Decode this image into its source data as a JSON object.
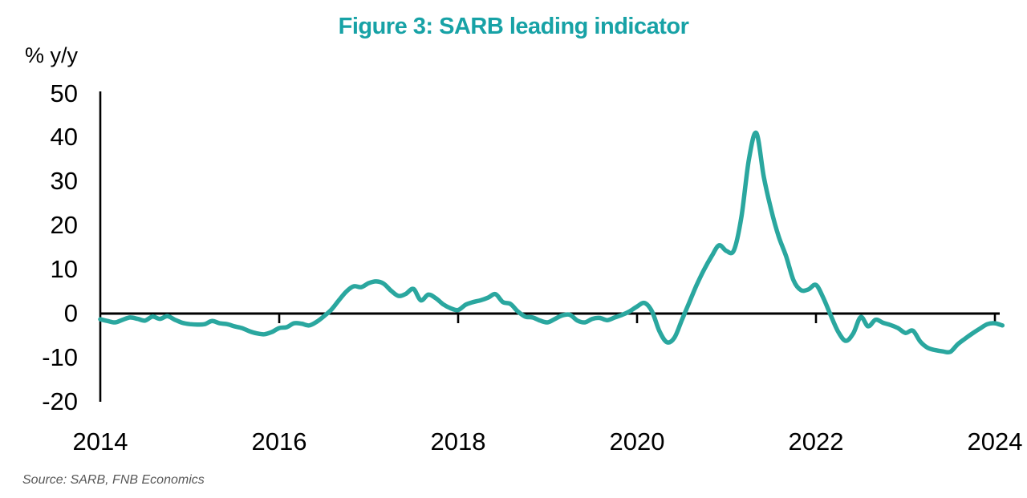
{
  "chart_data": {
    "type": "line",
    "title": "Figure 3: SARB leading indicator",
    "ylabel": "% y/y",
    "source": "Source: SARB, FNB Economics",
    "yticks": [
      50,
      40,
      30,
      20,
      10,
      0,
      -10,
      -20
    ],
    "ylim": [
      -20,
      50
    ],
    "xticks": [
      2014,
      2016,
      2018,
      2020,
      2022,
      2024
    ],
    "xlim": [
      2014,
      2024.25
    ],
    "grid": false,
    "legend_position": "none",
    "title_color": "#17A2A6",
    "line_color": "#2AA79F",
    "axis_color": "#000000",
    "series": [
      {
        "name": "SARB leading indicator, % y/y",
        "start_year": 2014,
        "start_month": 1,
        "frequency": "monthly",
        "values": [
          -1.3,
          -1.7,
          -2.0,
          -1.4,
          -0.9,
          -1.2,
          -1.6,
          -0.7,
          -1.2,
          -0.6,
          -1.4,
          -2.1,
          -2.4,
          -2.5,
          -2.4,
          -1.7,
          -2.2,
          -2.4,
          -2.9,
          -3.3,
          -4.0,
          -4.5,
          -4.7,
          -4.2,
          -3.3,
          -3.1,
          -2.2,
          -2.3,
          -2.7,
          -1.9,
          -0.6,
          0.9,
          3.0,
          5.0,
          6.2,
          6.0,
          6.9,
          7.3,
          6.8,
          5.2,
          4.0,
          4.5,
          5.6,
          3.0,
          4.3,
          3.5,
          2.1,
          1.2,
          0.8,
          2.0,
          2.6,
          3.0,
          3.6,
          4.4,
          2.6,
          2.2,
          0.5,
          -0.7,
          -0.9,
          -1.6,
          -2.0,
          -1.2,
          -0.4,
          -0.3,
          -1.6,
          -2.0,
          -1.2,
          -1.0,
          -1.5,
          -0.9,
          -0.3,
          0.5,
          1.6,
          2.4,
          0.5,
          -4.0,
          -6.5,
          -5.5,
          -1.5,
          2.5,
          6.5,
          10.0,
          13.0,
          15.5,
          14.2,
          14.4,
          22.0,
          35.0,
          41.0,
          31.0,
          23.5,
          17.5,
          13.0,
          7.5,
          5.3,
          5.5,
          6.5,
          3.5,
          -0.5,
          -4.2,
          -6.2,
          -4.5,
          -0.8,
          -2.9,
          -1.4,
          -2.1,
          -2.6,
          -3.3,
          -4.4,
          -3.9,
          -6.4,
          -7.8,
          -8.3,
          -8.6,
          -8.7,
          -7.0,
          -5.7,
          -4.5,
          -3.4,
          -2.4,
          -2.2,
          -2.7
        ]
      }
    ]
  }
}
